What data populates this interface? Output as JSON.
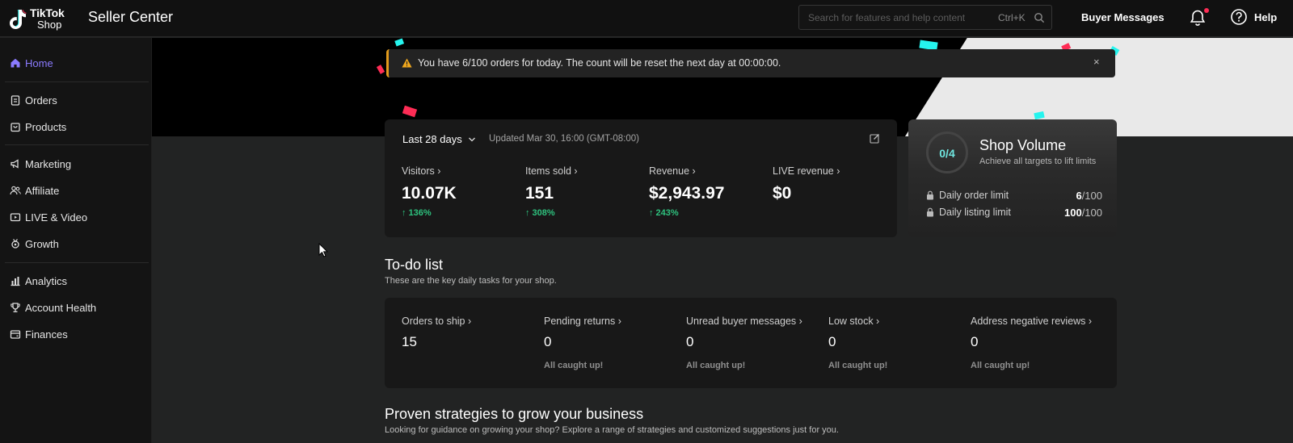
{
  "header": {
    "logo_line1": "TikTok",
    "logo_line2": "Shop",
    "app_title": "Seller Center",
    "search_placeholder": "Search for features and help content",
    "search_shortcut": "Ctrl+K",
    "buyer_messages": "Buyer Messages",
    "help": "Help"
  },
  "sidebar": {
    "items": [
      {
        "label": "Home",
        "icon": "home-icon",
        "active": true
      },
      {
        "label": "Orders",
        "icon": "clipboard-icon"
      },
      {
        "label": "Products",
        "icon": "bag-icon"
      },
      {
        "label": "Marketing",
        "icon": "megaphone-icon"
      },
      {
        "label": "Affiliate",
        "icon": "people-icon"
      },
      {
        "label": "LIVE & Video",
        "icon": "video-icon"
      },
      {
        "label": "Growth",
        "icon": "medal-icon"
      },
      {
        "label": "Analytics",
        "icon": "chart-icon"
      },
      {
        "label": "Account Health",
        "icon": "trophy-icon"
      },
      {
        "label": "Finances",
        "icon": "wallet-icon"
      }
    ]
  },
  "alert": {
    "text": "You have 6/100 orders for today. The count will be reset the next day at 00:00:00.",
    "close": "×"
  },
  "stats": {
    "period": "Last 28 days",
    "updated": "Updated Mar 30, 16:00 (GMT-08:00)",
    "metrics": [
      {
        "label": "Visitors ›",
        "value": "10.07K",
        "change": "↑ 136%"
      },
      {
        "label": "Items sold ›",
        "value": "151",
        "change": "↑ 308%"
      },
      {
        "label": "Revenue ›",
        "value": "$2,943.97",
        "change": "↑ 243%"
      },
      {
        "label": "LIVE revenue ›",
        "value": "$0",
        "change": ""
      }
    ]
  },
  "shop_volume": {
    "progress": "0/4",
    "title": "Shop Volume",
    "subtitle": "Achieve all targets to lift limits",
    "rows": [
      {
        "label": "Daily order limit",
        "value": "6",
        "total": "/100"
      },
      {
        "label": "Daily listing limit",
        "value": "100",
        "total": "/100"
      }
    ]
  },
  "todo": {
    "title": "To-do list",
    "subtitle": "These are the key daily tasks for your shop.",
    "items": [
      {
        "label": "Orders to ship ›",
        "value": "15",
        "note": ""
      },
      {
        "label": "Pending returns ›",
        "value": "0",
        "note": "All caught up!"
      },
      {
        "label": "Unread buyer messages ›",
        "value": "0",
        "note": "All caught up!"
      },
      {
        "label": "Low stock ›",
        "value": "0",
        "note": "All caught up!"
      },
      {
        "label": "Address negative reviews ›",
        "value": "0",
        "note": "All caught up!"
      }
    ]
  },
  "strategies": {
    "title": "Proven strategies to grow your business",
    "subtitle": "Looking for guidance on growing your shop? Explore a range of strategies and customized suggestions just for you."
  },
  "colors": {
    "accent": "#8b7bff",
    "positive": "#2ec27e",
    "warning": "#e29a1b",
    "notification": "#fe2c55",
    "volume_ring": "#6fe6e0"
  }
}
